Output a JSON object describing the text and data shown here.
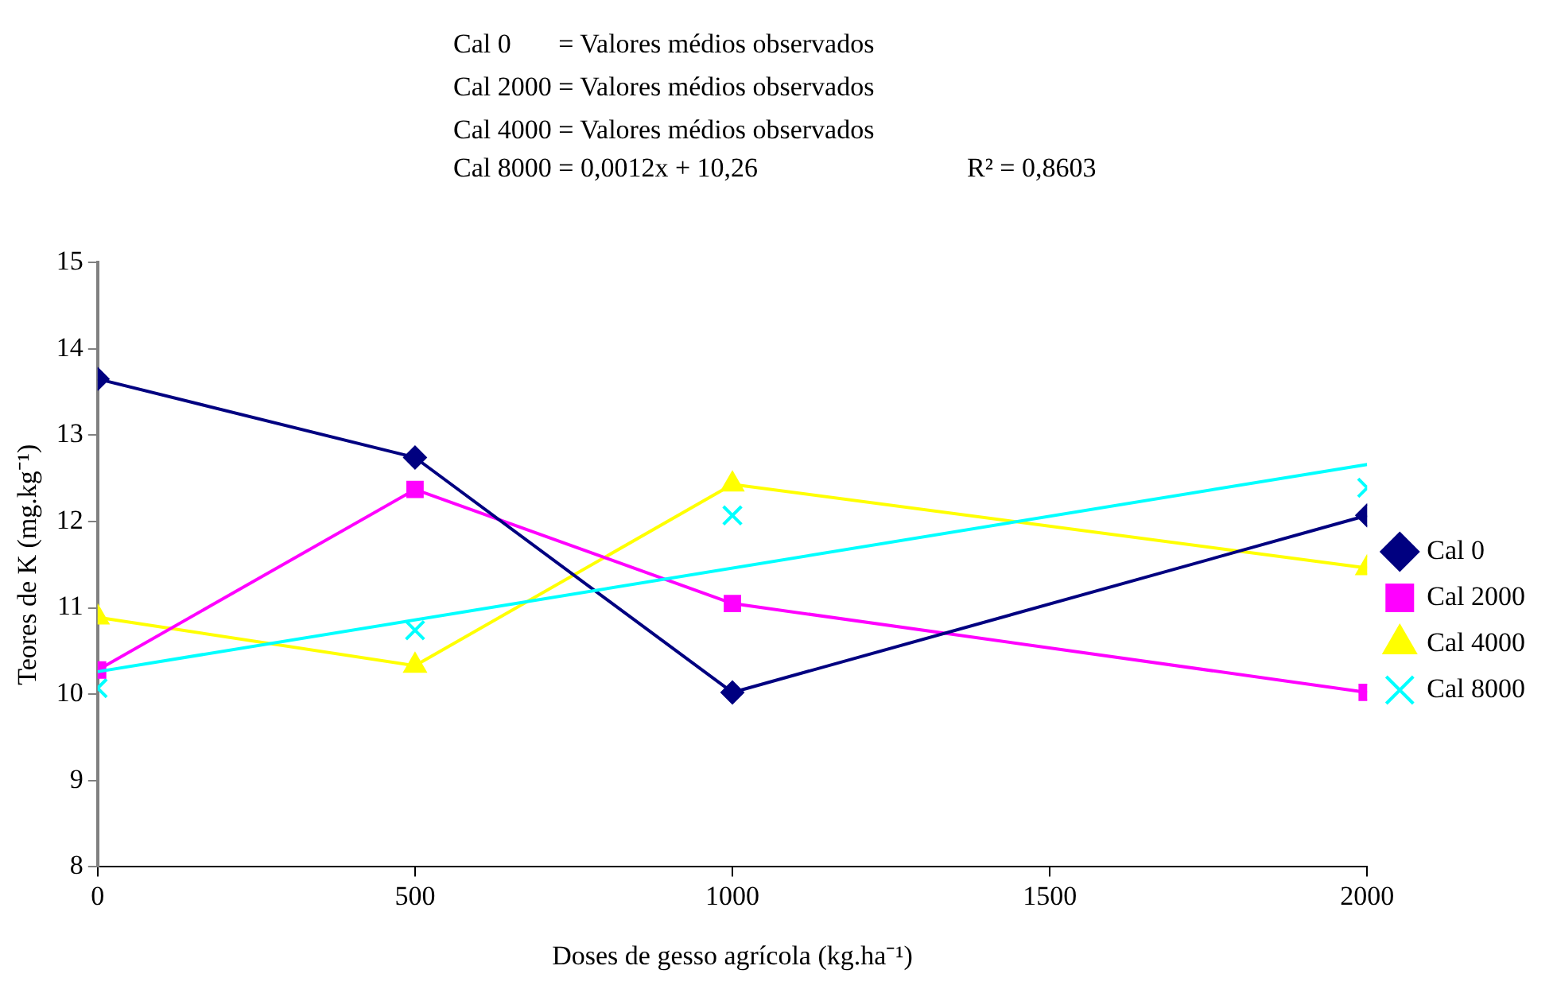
{
  "chart_data": {
    "type": "line",
    "xlabel": "Doses de gesso agrícola (kg.ha⁻¹)",
    "ylabel": "Teores de K (mg.kg⁻¹)",
    "annotations": [
      "Cal 0       = Valores médios observados",
      "Cal 2000 = Valores médios observados",
      "Cal 4000 = Valores médios observados",
      "Cal 8000 = 0,0012x + 10,26",
      "R² = 0,8603"
    ],
    "x": [
      0,
      500,
      1000,
      2000
    ],
    "series": [
      {
        "name": "Cal 0",
        "color": "#000080",
        "marker": "diamond",
        "values": [
          13.65,
          12.74,
          10.02,
          12.07
        ]
      },
      {
        "name": "Cal 2000",
        "color": "#ff00ff",
        "marker": "square",
        "values": [
          10.28,
          12.37,
          11.05,
          10.02
        ]
      },
      {
        "name": "Cal 4000",
        "color": "#ffff00",
        "marker": "triangle",
        "values": [
          10.89,
          10.33,
          12.43,
          11.46
        ]
      },
      {
        "name": "Cal 8000",
        "type": "scatter",
        "color": "#00ffff",
        "marker": "cross",
        "values": [
          10.07,
          10.74,
          12.07,
          12.39
        ]
      },
      {
        "type": "line",
        "color": "#00ffff",
        "marker": "none",
        "x": [
          0,
          2000
        ],
        "values": [
          10.26,
          12.66
        ]
      }
    ],
    "xlim": [
      0,
      2000
    ],
    "xticks": [
      0,
      500,
      1000,
      1500,
      2000
    ],
    "ylim": [
      8,
      15
    ],
    "yticks": [
      8,
      9,
      10,
      11,
      12,
      13,
      14,
      15
    ],
    "grid": false,
    "legend": "right"
  }
}
